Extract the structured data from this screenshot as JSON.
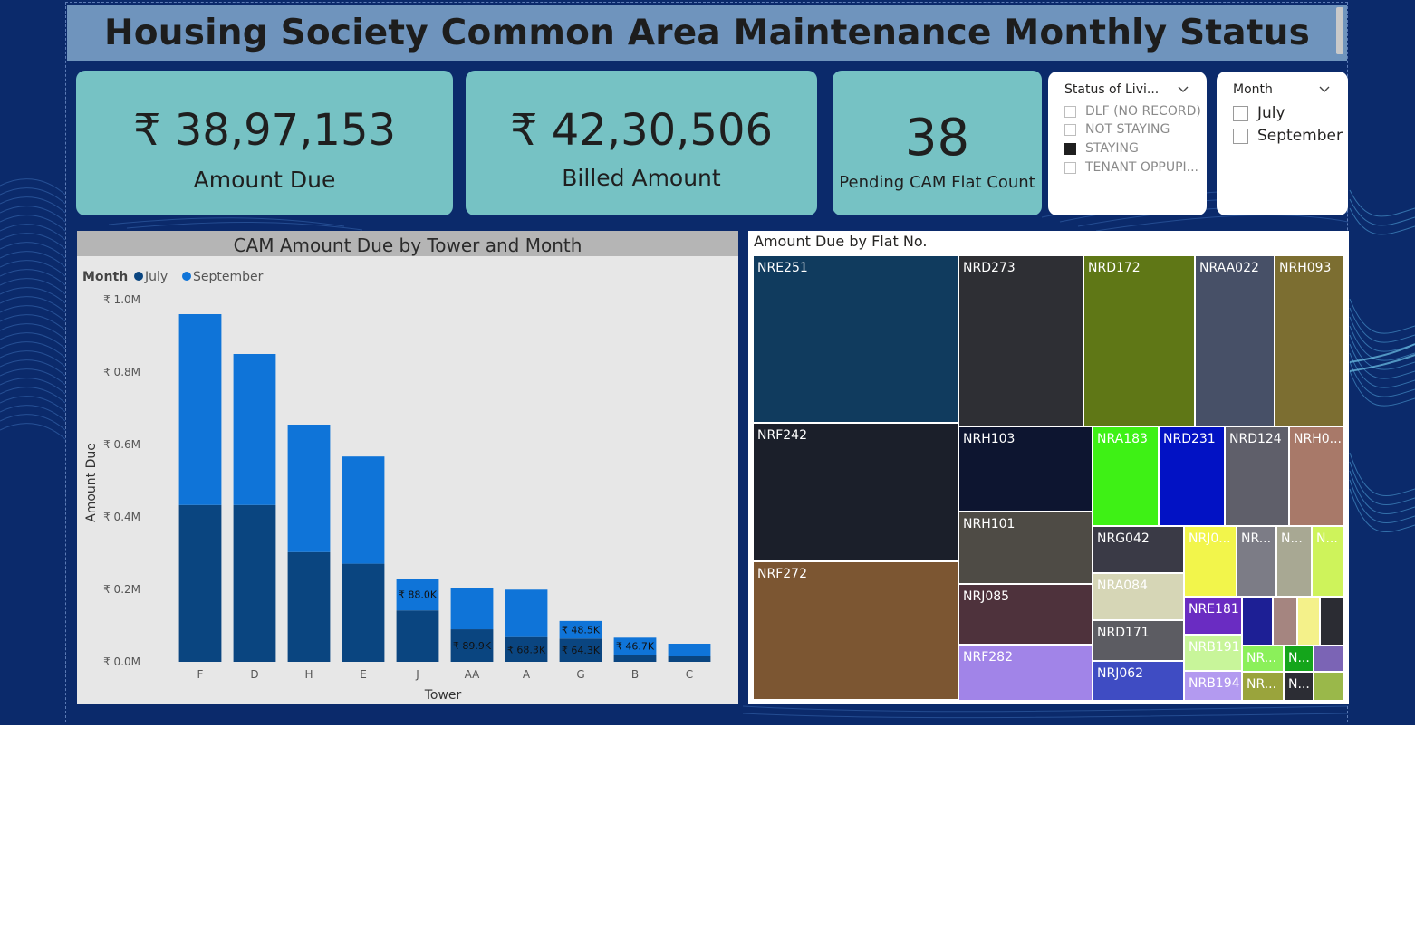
{
  "header": {
    "title": "Housing Society Common Area Maintenance Monthly Status"
  },
  "kpis": {
    "amount_due": {
      "value": "₹ 38,97,153",
      "label": "Amount Due"
    },
    "billed_amount": {
      "value": "₹ 42,30,506",
      "label": "Billed Amount"
    },
    "pending_count": {
      "value": "38",
      "label": "Pending CAM Flat Count"
    }
  },
  "status_slicer": {
    "header": "Status of Livi...",
    "options": [
      {
        "label": "DLF (NO RECORD)",
        "checked": false
      },
      {
        "label": "NOT STAYING",
        "checked": false
      },
      {
        "label": "STAYING",
        "checked": true
      },
      {
        "label": "TENANT OPPUPI...",
        "checked": false
      }
    ]
  },
  "month_slicer": {
    "header": "Month",
    "options": [
      {
        "label": "July",
        "checked": false
      },
      {
        "label": "September",
        "checked": false
      }
    ]
  },
  "colors": {
    "canvas": "#0b2a6b",
    "kpi_card": "#76c2c4",
    "july": "#0a4580",
    "september": "#0f74d8",
    "title_bar": "#6f94bd"
  },
  "chart_data": {
    "type": "bar",
    "stacked": true,
    "title": "CAM Amount Due by Tower and Month",
    "legend_title": "Month",
    "legend_position": "top-left",
    "xlabel": "Tower",
    "ylabel": "Amount Due",
    "ylim": [
      0,
      1000000
    ],
    "yticks": [
      0,
      200000,
      400000,
      600000,
      800000,
      1000000
    ],
    "ytick_labels": [
      "₹ 0.0M",
      "₹ 0.2M",
      "₹ 0.4M",
      "₹ 0.6M",
      "₹ 0.8M",
      "₹ 1.0M"
    ],
    "categories": [
      "F",
      "D",
      "H",
      "E",
      "J",
      "AA",
      "A",
      "G",
      "B",
      "C"
    ],
    "series": [
      {
        "name": "July",
        "color": "#0a4580",
        "values": [
          433000,
          433000,
          303000,
          271000,
          142000,
          89900,
          68300,
          64300,
          20000,
          15000
        ],
        "data_labels": [
          "",
          "",
          "",
          "",
          "",
          "₹ 89.9K",
          "₹ 68.3K",
          "₹ 64.3K",
          "",
          ""
        ]
      },
      {
        "name": "September",
        "color": "#0f74d8",
        "values": [
          527000,
          417000,
          352000,
          296000,
          88000,
          115000,
          131000,
          48500,
          46700,
          35000
        ],
        "data_labels": [
          "",
          "",
          "",
          "",
          "₹ 88.0K",
          "",
          "",
          "₹ 48.5K",
          "₹ 46.7K",
          ""
        ]
      }
    ],
    "grid": false
  },
  "treemap": {
    "title": "Amount Due by Flat No.",
    "tiles": [
      {
        "label": "NRE251",
        "color": "#103b5e"
      },
      {
        "label": "NRF242",
        "color": "#1b1f2a"
      },
      {
        "label": "NRF272",
        "color": "#7c5632"
      },
      {
        "label": "NRD273",
        "color": "#2e2f34"
      },
      {
        "label": "NRD172",
        "color": "#5f7716"
      },
      {
        "label": "NRAA022",
        "color": "#475067"
      },
      {
        "label": "NRH093",
        "color": "#7c6e31"
      },
      {
        "label": "NRH103",
        "color": "#0d1530"
      },
      {
        "label": "NRA183",
        "color": "#3ef115"
      },
      {
        "label": "NRD231",
        "color": "#0212c4"
      },
      {
        "label": "NRD124",
        "color": "#5f5f6a"
      },
      {
        "label": "NRH0...",
        "color": "#a87969"
      },
      {
        "label": "NRH101",
        "color": "#4e4b45"
      },
      {
        "label": "NRG042",
        "color": "#3a3a46"
      },
      {
        "label": "NRJ0...",
        "color": "#f2f54b"
      },
      {
        "label": "NR...",
        "color": "#7c7c86"
      },
      {
        "label": "N...",
        "color": "#a8a893"
      },
      {
        "label": "N...",
        "color": "#cef35b"
      },
      {
        "label": "NRA084",
        "color": "#d6d6b6"
      },
      {
        "label": "NRJ085",
        "color": "#4e323c"
      },
      {
        "label": "NRD171",
        "color": "#5c5c62"
      },
      {
        "label": "NRE181",
        "color": "#6a2cc2"
      },
      {
        "label": "",
        "color": "#1d1f95"
      },
      {
        "label": "",
        "color": "#a58580"
      },
      {
        "label": "",
        "color": "#f4f18a"
      },
      {
        "label": "",
        "color": "#2b2c33"
      },
      {
        "label": "NRF282",
        "color": "#a184e8"
      },
      {
        "label": "NRJ062",
        "color": "#3f4cc3"
      },
      {
        "label": "NRB191",
        "color": "#c8f59a"
      },
      {
        "label": "NR...",
        "color": "#8bf05a"
      },
      {
        "label": "N...",
        "color": "#14a51b"
      },
      {
        "label": "",
        "color": "#7b64b5"
      },
      {
        "label": "NRB194",
        "color": "#b39af0"
      },
      {
        "label": "NR...",
        "color": "#9aa43c"
      },
      {
        "label": "N...",
        "color": "#2c2d34"
      },
      {
        "label": "",
        "color": "#9ab84a"
      }
    ]
  }
}
